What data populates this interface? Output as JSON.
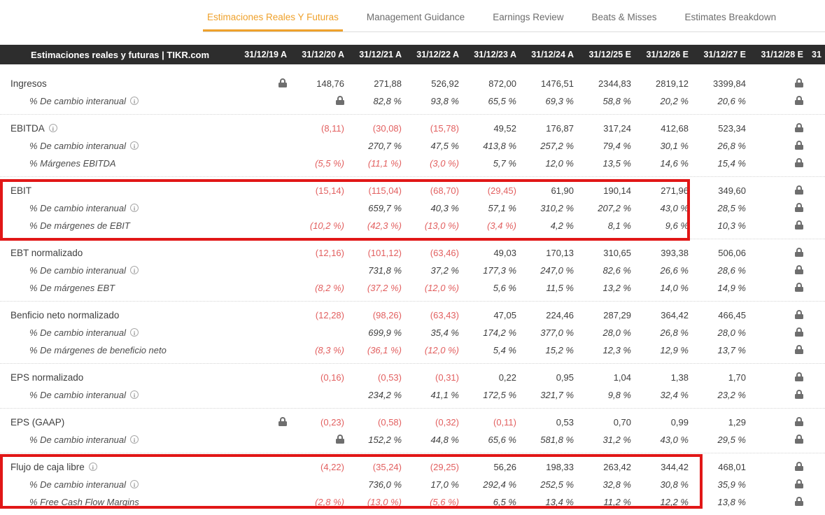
{
  "colors": {
    "accent_orange": "#efa12b",
    "negative_red": "#e25f5f",
    "highlight_box_red": "#e11717",
    "header_bg": "#2d2d2d"
  },
  "tabs": [
    {
      "label": "Estimaciones Reales Y Futuras",
      "active": true
    },
    {
      "label": "Management Guidance",
      "active": false
    },
    {
      "label": "Earnings Review",
      "active": false
    },
    {
      "label": "Beats & Misses",
      "active": false
    },
    {
      "label": "Estimates Breakdown",
      "active": false
    }
  ],
  "header": {
    "title": "Estimaciones reales y futuras | TIKR.com",
    "columns": [
      "31/12/19 A",
      "31/12/20 A",
      "31/12/21 A",
      "31/12/22 A",
      "31/12/23 A",
      "31/12/24 A",
      "31/12/25 E",
      "31/12/26 E",
      "31/12/27 E",
      "31/12/28 E"
    ],
    "clipped_column": "31"
  },
  "sections": [
    {
      "highlight": null,
      "rows": [
        {
          "label": "Ingresos",
          "sub": false,
          "info": false,
          "cells": [
            "lock",
            "148,76",
            "271,88",
            "526,92",
            "872,00",
            "1476,51",
            "2344,83",
            "2819,12",
            "3399,84",
            "lock"
          ]
        },
        {
          "label": "% De cambio interanual",
          "sub": true,
          "info": true,
          "cells": [
            "",
            "lock",
            "82,8 %",
            "93,8 %",
            "65,5 %",
            "69,3 %",
            "58,8 %",
            "20,2 %",
            "20,6 %",
            "lock"
          ]
        }
      ]
    },
    {
      "highlight": null,
      "rows": [
        {
          "label": "EBITDA",
          "sub": false,
          "info": true,
          "cells": [
            "",
            "(8,11)",
            "(30,08)",
            "(15,78)",
            "49,52",
            "176,87",
            "317,24",
            "412,68",
            "523,34",
            "lock"
          ]
        },
        {
          "label": "% De cambio interanual",
          "sub": true,
          "info": true,
          "cells": [
            "",
            "",
            "270,7 %",
            "47,5 %",
            "413,8 %",
            "257,2 %",
            "79,4 %",
            "30,1 %",
            "26,8 %",
            "lock"
          ]
        },
        {
          "label": "% Márgenes EBITDA",
          "sub": true,
          "info": false,
          "cells": [
            "",
            "(5,5 %)",
            "(11,1 %)",
            "(3,0 %)",
            "5,7 %",
            "12,0 %",
            "13,5 %",
            "14,6 %",
            "15,4 %",
            "lock"
          ]
        }
      ]
    },
    {
      "highlight": "ebit",
      "rows": [
        {
          "label": "EBIT",
          "sub": false,
          "info": false,
          "cells": [
            "",
            "(15,14)",
            "(115,04)",
            "(68,70)",
            "(29,45)",
            "61,90",
            "190,14",
            "271,96",
            "349,60",
            "lock"
          ]
        },
        {
          "label": "% De cambio interanual",
          "sub": true,
          "info": true,
          "cells": [
            "",
            "",
            "659,7 %",
            "40,3 %",
            "57,1 %",
            "310,2 %",
            "207,2 %",
            "43,0 %",
            "28,5 %",
            "lock"
          ]
        },
        {
          "label": "% De márgenes de EBIT",
          "sub": true,
          "info": false,
          "cells": [
            "",
            "(10,2 %)",
            "(42,3 %)",
            "(13,0 %)",
            "(3,4 %)",
            "4,2 %",
            "8,1 %",
            "9,6 %",
            "10,3 %",
            "lock"
          ]
        }
      ]
    },
    {
      "highlight": null,
      "rows": [
        {
          "label": "EBT normalizado",
          "sub": false,
          "info": false,
          "cells": [
            "",
            "(12,16)",
            "(101,12)",
            "(63,46)",
            "49,03",
            "170,13",
            "310,65",
            "393,38",
            "506,06",
            "lock"
          ]
        },
        {
          "label": "% De cambio interanual",
          "sub": true,
          "info": true,
          "cells": [
            "",
            "",
            "731,8 %",
            "37,2 %",
            "177,3 %",
            "247,0 %",
            "82,6 %",
            "26,6 %",
            "28,6 %",
            "lock"
          ]
        },
        {
          "label": "% De márgenes EBT",
          "sub": true,
          "info": false,
          "cells": [
            "",
            "(8,2 %)",
            "(37,2 %)",
            "(12,0 %)",
            "5,6 %",
            "11,5 %",
            "13,2 %",
            "14,0 %",
            "14,9 %",
            "lock"
          ]
        }
      ]
    },
    {
      "highlight": null,
      "rows": [
        {
          "label": "Benficio neto normalizado",
          "sub": false,
          "info": false,
          "cells": [
            "",
            "(12,28)",
            "(98,26)",
            "(63,43)",
            "47,05",
            "224,46",
            "287,29",
            "364,42",
            "466,45",
            "lock"
          ]
        },
        {
          "label": "% De cambio interanual",
          "sub": true,
          "info": true,
          "cells": [
            "",
            "",
            "699,9 %",
            "35,4 %",
            "174,2 %",
            "377,0 %",
            "28,0 %",
            "26,8 %",
            "28,0 %",
            "lock"
          ]
        },
        {
          "label": "% De márgenes de beneficio neto",
          "sub": true,
          "info": false,
          "cells": [
            "",
            "(8,3 %)",
            "(36,1 %)",
            "(12,0 %)",
            "5,4 %",
            "15,2 %",
            "12,3 %",
            "12,9 %",
            "13,7 %",
            "lock"
          ]
        }
      ]
    },
    {
      "highlight": null,
      "rows": [
        {
          "label": "EPS normalizado",
          "sub": false,
          "info": false,
          "cells": [
            "",
            "(0,16)",
            "(0,53)",
            "(0,31)",
            "0,22",
            "0,95",
            "1,04",
            "1,38",
            "1,70",
            "lock"
          ]
        },
        {
          "label": "% De cambio interanual",
          "sub": true,
          "info": true,
          "cells": [
            "",
            "",
            "234,2 %",
            "41,1 %",
            "172,5 %",
            "321,7 %",
            "9,8 %",
            "32,4 %",
            "23,2 %",
            "lock"
          ]
        }
      ]
    },
    {
      "highlight": null,
      "rows": [
        {
          "label": "EPS (GAAP)",
          "sub": false,
          "info": false,
          "cells": [
            "lock",
            "(0,23)",
            "(0,58)",
            "(0,32)",
            "(0,11)",
            "0,53",
            "0,70",
            "0,99",
            "1,29",
            "lock"
          ]
        },
        {
          "label": "% De cambio interanual",
          "sub": true,
          "info": true,
          "cells": [
            "",
            "lock",
            "152,2 %",
            "44,8 %",
            "65,6 %",
            "581,8 %",
            "31,2 %",
            "43,0 %",
            "29,5 %",
            "lock"
          ]
        }
      ]
    },
    {
      "highlight": "fcf",
      "rows": [
        {
          "label": "Flujo de caja libre",
          "sub": false,
          "info": true,
          "cells": [
            "",
            "(4,22)",
            "(35,24)",
            "(29,25)",
            "56,26",
            "198,33",
            "263,42",
            "344,42",
            "468,01",
            "lock"
          ]
        },
        {
          "label": "% De cambio interanual",
          "sub": true,
          "info": true,
          "cells": [
            "",
            "",
            "736,0 %",
            "17,0 %",
            "292,4 %",
            "252,5 %",
            "32,8 %",
            "30,8 %",
            "35,9 %",
            "lock"
          ]
        },
        {
          "label": "% Free Cash Flow Margins",
          "sub": true,
          "info": false,
          "cells": [
            "",
            "(2,8 %)",
            "(13,0 %)",
            "(5,6 %)",
            "6,5 %",
            "13,4 %",
            "11,2 %",
            "12,2 %",
            "13,8 %",
            "lock"
          ]
        }
      ]
    }
  ]
}
